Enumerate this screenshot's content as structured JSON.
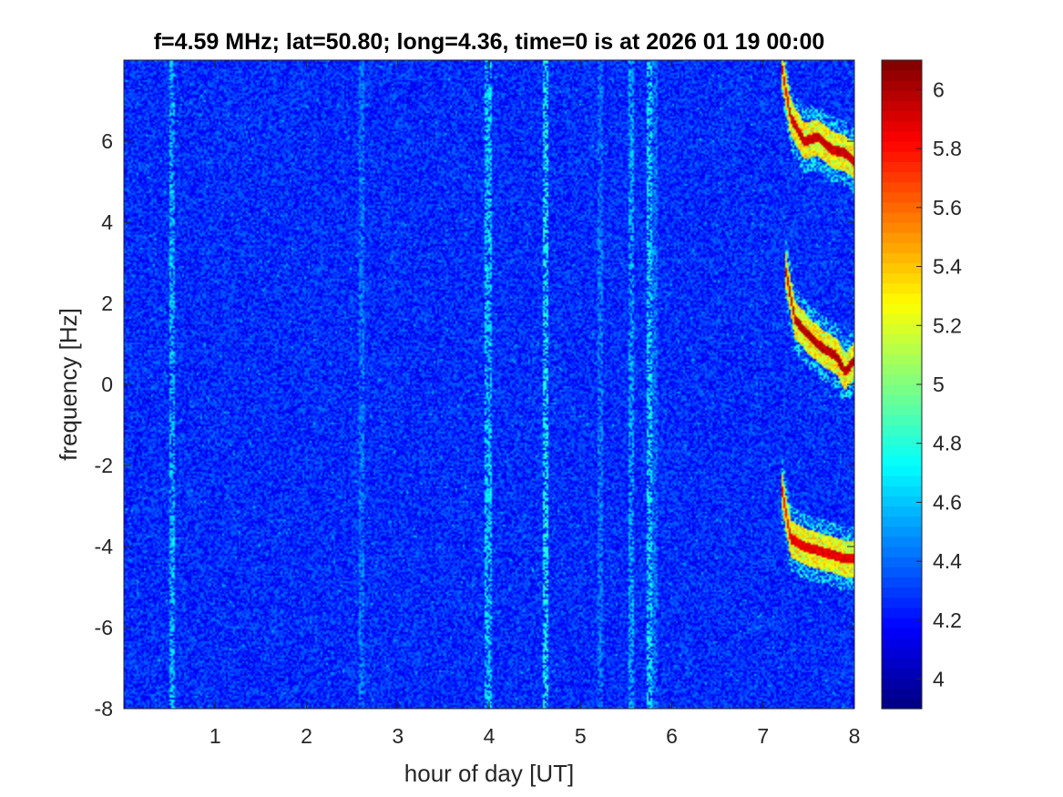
{
  "chart_data": {
    "type": "heatmap",
    "title": "f=4.59 MHz;  lat=50.80; long=4.36, time=0 is at 2026 01 19 00:00",
    "xlabel": "hour of day [UT]",
    "ylabel": "frequency [Hz]",
    "xlim": [
      0,
      8
    ],
    "ylim": [
      -8,
      8
    ],
    "x_ticks": [
      "1",
      "2",
      "3",
      "4",
      "5",
      "6",
      "7",
      "8"
    ],
    "x_tick_values": [
      1,
      2,
      3,
      4,
      5,
      6,
      7,
      8
    ],
    "y_ticks": [
      "6",
      "4",
      "2",
      "0",
      "-2",
      "-4",
      "-6",
      "-8"
    ],
    "y_tick_values": [
      6,
      4,
      2,
      0,
      -2,
      -4,
      -6,
      -8
    ],
    "colormap": "jet",
    "color_range": [
      3.9,
      6.1
    ],
    "colorbar_ticks": [
      "6",
      "5.8",
      "5.6",
      "5.4",
      "5.2",
      "5",
      "4.8",
      "4.6",
      "4.4",
      "4.2",
      "4"
    ],
    "colorbar_tick_values": [
      6,
      5.8,
      5.6,
      5.4,
      5.2,
      5,
      4.8,
      4.6,
      4.4,
      4.2,
      4
    ],
    "background_level": 4.2,
    "vertical_streaks": [
      {
        "hour": 0.53,
        "level": 4.75
      },
      {
        "hour": 2.6,
        "level": 4.6
      },
      {
        "hour": 3.99,
        "level": 4.8
      },
      {
        "hour": 4.62,
        "level": 4.9
      },
      {
        "hour": 5.22,
        "level": 4.6
      },
      {
        "hour": 5.55,
        "level": 4.7
      },
      {
        "hour": 5.75,
        "level": 4.85
      },
      {
        "hour": 5.82,
        "level": 4.6
      }
    ],
    "features": [
      {
        "name": "",
        "points": [
          [
            7.2,
            7.9
          ],
          [
            7.3,
            6.6
          ],
          [
            7.45,
            6.0
          ],
          [
            7.6,
            6.1
          ],
          [
            7.75,
            5.8
          ],
          [
            7.9,
            5.7
          ],
          [
            8.0,
            5.5
          ]
        ],
        "level": 6.0
      },
      {
        "name": "",
        "points": [
          [
            7.25,
            2.8
          ],
          [
            7.35,
            1.6
          ],
          [
            7.5,
            1.2
          ],
          [
            7.65,
            0.9
          ],
          [
            7.8,
            0.7
          ],
          [
            7.9,
            0.3
          ],
          [
            8.0,
            0.6
          ]
        ],
        "level": 6.05
      },
      {
        "name": "",
        "points": [
          [
            7.2,
            -2.5
          ],
          [
            7.3,
            -3.8
          ],
          [
            7.45,
            -4.0
          ],
          [
            7.6,
            -4.1
          ],
          [
            7.75,
            -4.2
          ],
          [
            7.9,
            -4.3
          ],
          [
            8.0,
            -4.3
          ]
        ],
        "level": 5.95
      }
    ]
  }
}
